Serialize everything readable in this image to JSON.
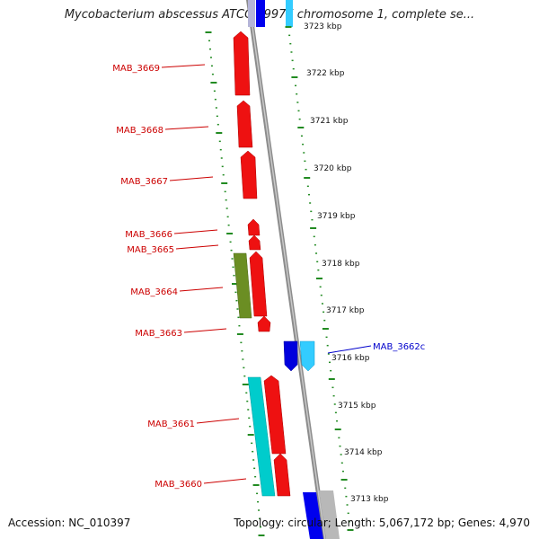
{
  "title": "Mycobacterium abscessus ATCC 19977 chromosome 1, complete se...",
  "accession": "Accession: NC_010397",
  "summary": "Topology: circular; Length: 5,067,172 bp; Genes: 4,970",
  "colors": {
    "forward_cds": "#ff0000",
    "reverse_cds": "#0000ee",
    "forward_rna": "#00cccc",
    "reverse_rna": "#33ccff",
    "other_feature": "#6b8e23",
    "grey_feature": "#b0b0b0",
    "backbone": "#888888",
    "tick": "#228b22",
    "label_forward": "#cc0000",
    "label_reverse": "#0000cc"
  },
  "axis_labels": [
    "3723 kbp",
    "3722 kbp",
    "3721 kbp",
    "3720 kbp",
    "3719 kbp",
    "3718 kbp",
    "3717 kbp",
    "3716 kbp",
    "3715 kbp",
    "3714 kbp",
    "3713 kbp"
  ],
  "genes": [
    {
      "name": "MAB_3669",
      "strand": "forward"
    },
    {
      "name": "MAB_3668",
      "strand": "forward"
    },
    {
      "name": "MAB_3667",
      "strand": "forward"
    },
    {
      "name": "MAB_3666",
      "strand": "forward"
    },
    {
      "name": "MAB_3665",
      "strand": "forward"
    },
    {
      "name": "MAB_3664",
      "strand": "forward"
    },
    {
      "name": "MAB_3663",
      "strand": "forward"
    },
    {
      "name": "MAB_3662c",
      "strand": "reverse"
    },
    {
      "name": "MAB_3661",
      "strand": "forward"
    },
    {
      "name": "MAB_3660",
      "strand": "forward"
    }
  ]
}
